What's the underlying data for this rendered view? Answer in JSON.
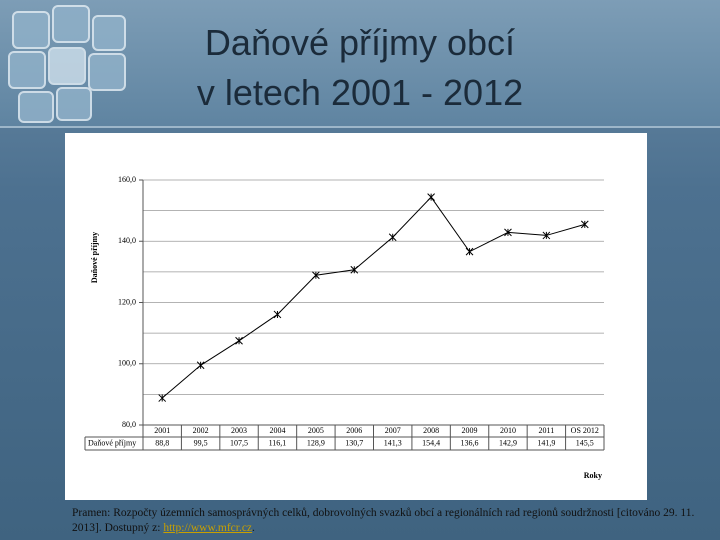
{
  "slide": {
    "title": [
      "Daňové příjmy obcí",
      "v letech 2001 - 2012"
    ]
  },
  "chart_data": {
    "type": "line",
    "y_label": "Daňové příjmy",
    "x_label": "Roky",
    "row_label": "Daňové příjmy",
    "categories": [
      "2001",
      "2002",
      "2003",
      "2004",
      "2005",
      "2006",
      "2007",
      "2008",
      "2009",
      "2010",
      "2011",
      "OS 2012"
    ],
    "values": [
      88.8,
      99.5,
      107.5,
      116.1,
      128.9,
      130.7,
      141.3,
      154.4,
      136.6,
      142.9,
      141.9,
      145.5
    ],
    "value_labels": [
      "88,8",
      "99,5",
      "107,5",
      "116,1",
      "128,9",
      "130,7",
      "141,3",
      "154,4",
      "136,6",
      "142,9",
      "141,9",
      "145,5"
    ],
    "color": "#000000",
    "ylim": [
      80,
      160
    ],
    "yticks": [
      {
        "value": 80,
        "label": "80,0"
      },
      {
        "value": 100,
        "label": "100,0"
      },
      {
        "value": 120,
        "label": "120,0"
      },
      {
        "value": 140,
        "label": "140,0"
      },
      {
        "value": 160,
        "label": "160,0"
      }
    ],
    "ygrid": [
      80,
      90,
      100,
      110,
      120,
      130,
      140,
      150,
      160
    ],
    "grid": true
  },
  "source": {
    "text": "Pramen: Rozpočty územních samosprávných celků, dobrovolných svazků obcí a regionálních rad regionů soudržnosti [citováno 29. 11. 2013]. Dostupný z: ",
    "link": "http://www.mfcr.cz",
    "end": "."
  }
}
